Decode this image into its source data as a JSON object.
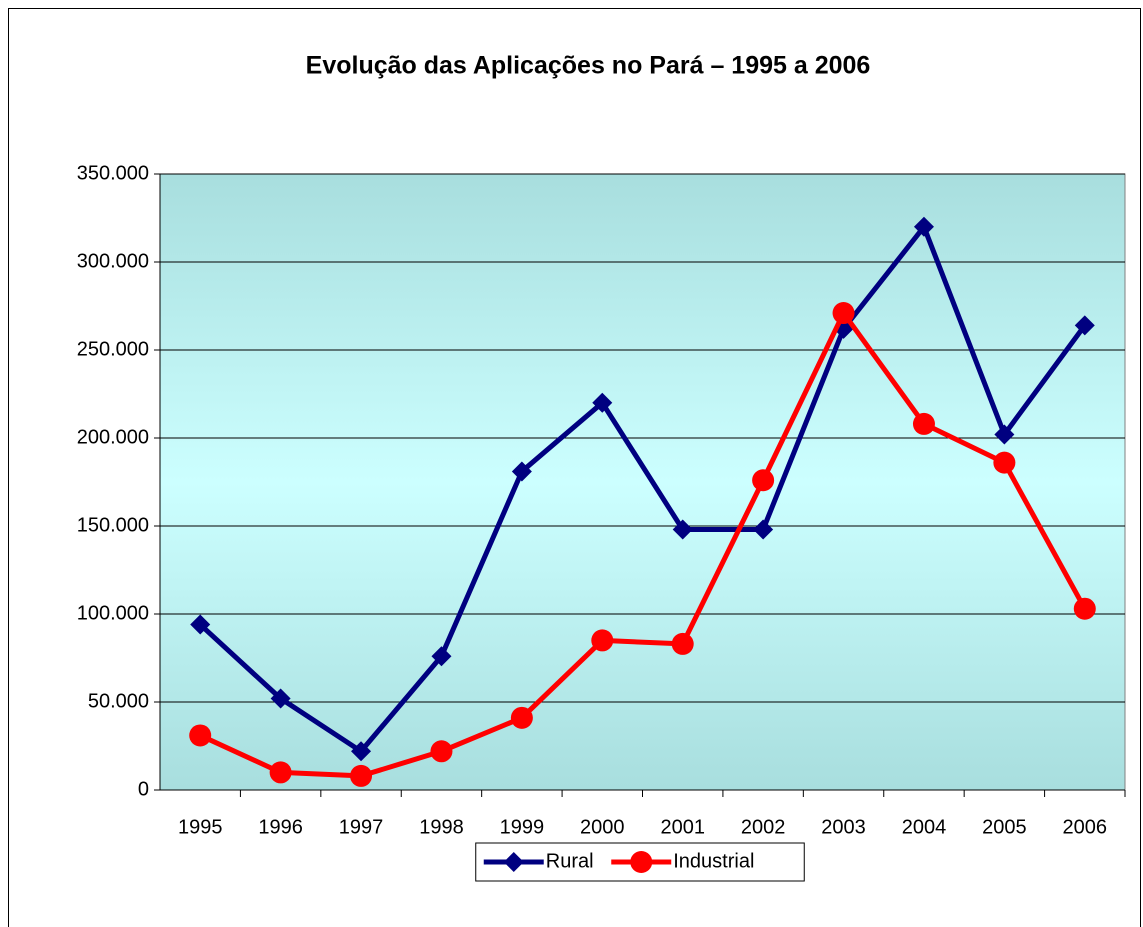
{
  "chart_data": {
    "type": "line",
    "title": "Evolução das Aplicações no Pará – 1995 a 2006",
    "categories": [
      "1995",
      "1996",
      "1997",
      "1998",
      "1999",
      "2000",
      "2001",
      "2002",
      "2003",
      "2004",
      "2005",
      "2006"
    ],
    "series": [
      {
        "name": "Rural",
        "color": "#000080",
        "marker": "diamond",
        "values": [
          94000,
          52000,
          22000,
          76000,
          181000,
          220000,
          148000,
          148000,
          262000,
          320000,
          202000,
          264000
        ]
      },
      {
        "name": "Industrial",
        "color": "#ff0000",
        "marker": "circle",
        "values": [
          31000,
          10000,
          8000,
          22000,
          41000,
          85000,
          83000,
          176000,
          271000,
          208000,
          186000,
          103000
        ]
      }
    ],
    "ylim": [
      0,
      350000
    ],
    "yticks": [
      0,
      {
        "value": 50000,
        "label": "50.000"
      },
      {
        "value": 100000,
        "label": "100.000"
      },
      {
        "value": 150000,
        "label": "150.000"
      },
      {
        "value": 200000,
        "label": "200.000"
      },
      {
        "value": 250000,
        "label": "250.000"
      },
      {
        "value": 300000,
        "label": "300.000"
      },
      {
        "value": 350000,
        "label": "350.000"
      }
    ],
    "grid": true,
    "legend": "bottom"
  }
}
